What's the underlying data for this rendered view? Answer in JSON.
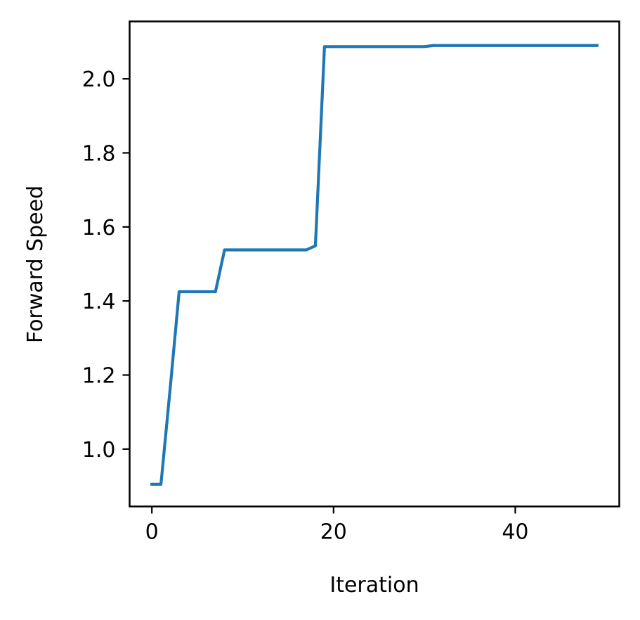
{
  "chart_data": {
    "type": "line",
    "title": "",
    "xlabel": "Iteration",
    "ylabel": "Forward Speed",
    "xlim": [
      -2.45,
      51.45
    ],
    "ylim": [
      0.845,
      2.155
    ],
    "xticks": [
      0,
      20,
      40
    ],
    "xtick_labels": [
      "0",
      "20",
      "40"
    ],
    "yticks": [
      1.0,
      1.2,
      1.4,
      1.6,
      1.8,
      2.0
    ],
    "ytick_labels": [
      "1.0",
      "1.2",
      "1.4",
      "1.6",
      "1.8",
      "2.0"
    ],
    "grid": false,
    "legend": "none",
    "series": [
      {
        "color": "#1f77b4",
        "x": [
          0,
          1,
          2,
          3,
          4,
          5,
          6,
          7,
          8,
          9,
          10,
          11,
          12,
          13,
          14,
          15,
          16,
          17,
          18,
          19,
          20,
          21,
          22,
          23,
          24,
          25,
          26,
          27,
          28,
          29,
          30,
          31,
          32,
          33,
          34,
          35,
          36,
          37,
          38,
          39,
          40,
          41,
          42,
          43,
          44,
          45,
          46,
          47,
          48,
          49
        ],
        "y": [
          0.905,
          0.905,
          1.16,
          1.425,
          1.425,
          1.425,
          1.425,
          1.425,
          1.538,
          1.538,
          1.538,
          1.538,
          1.538,
          1.538,
          1.538,
          1.538,
          1.538,
          1.538,
          1.549,
          2.087,
          2.087,
          2.087,
          2.087,
          2.087,
          2.087,
          2.087,
          2.087,
          2.087,
          2.087,
          2.087,
          2.087,
          2.09,
          2.09,
          2.09,
          2.09,
          2.09,
          2.09,
          2.09,
          2.09,
          2.09,
          2.09,
          2.09,
          2.09,
          2.09,
          2.09,
          2.09,
          2.09,
          2.09,
          2.09,
          2.09
        ]
      }
    ]
  }
}
